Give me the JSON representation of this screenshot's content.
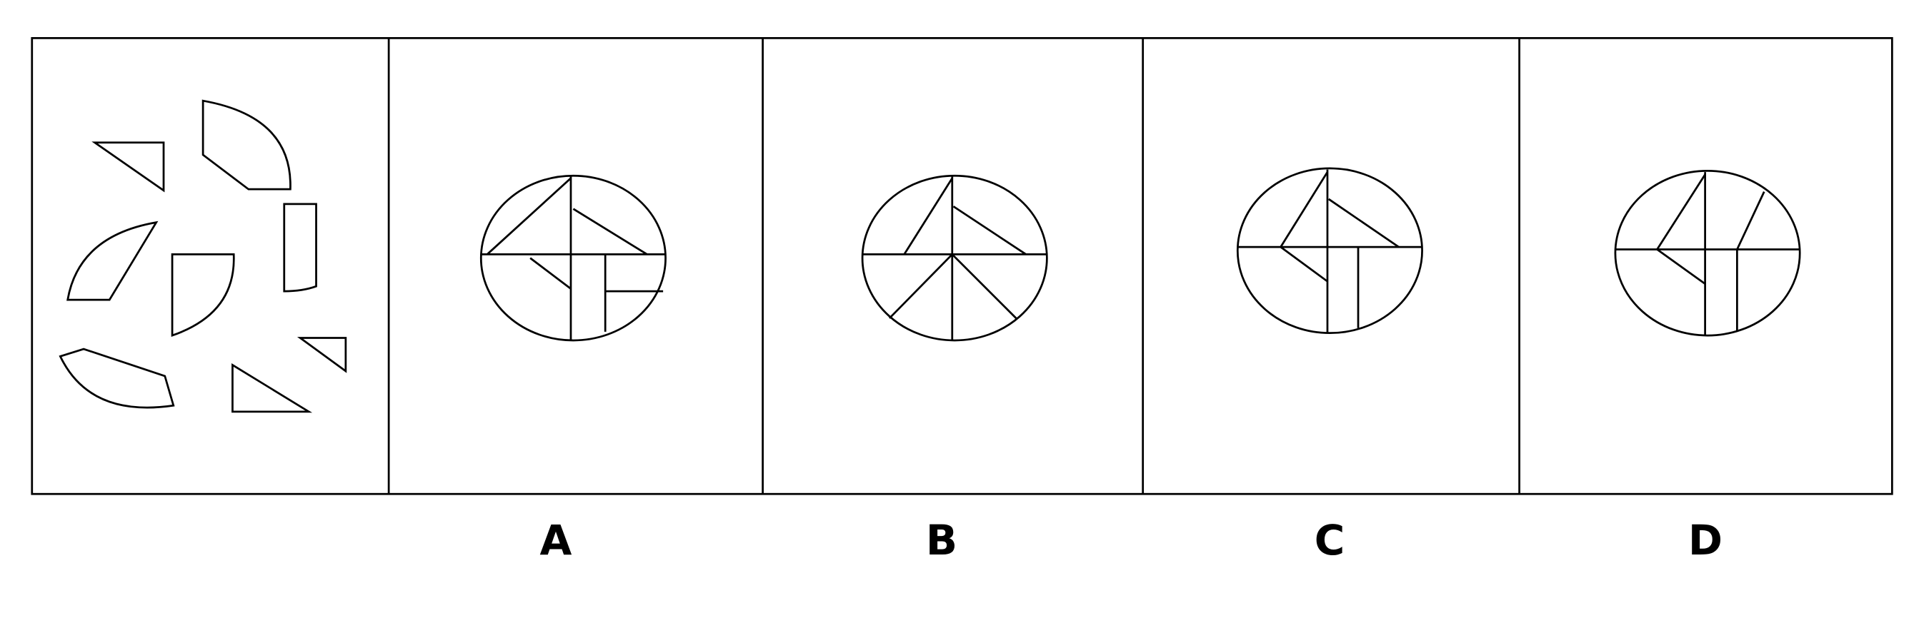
{
  "options": [
    {
      "label": "A"
    },
    {
      "label": "B"
    },
    {
      "label": "C"
    },
    {
      "label": "D"
    }
  ],
  "colors": {
    "stroke": "#000000",
    "background": "#ffffff"
  }
}
